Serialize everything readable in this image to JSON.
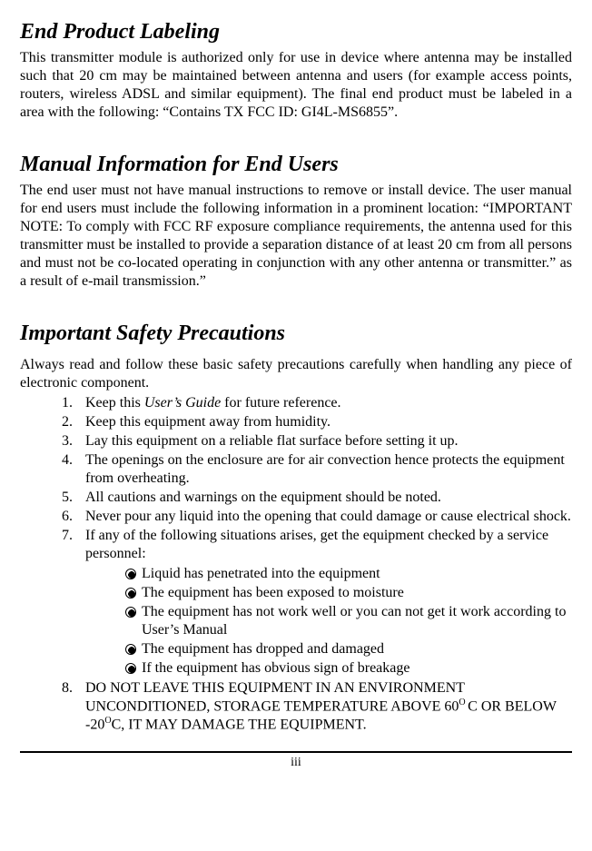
{
  "section1": {
    "heading": "End Product Labeling",
    "body": "This transmitter module is authorized only for use in device where antenna may be installed such that 20 cm may be maintained between antenna and users (for example access points, routers, wireless ADSL and similar equipment). The final end product must be labeled in a area with the following: “Contains TX FCC ID: GI4L-MS6855”."
  },
  "section2": {
    "heading": "Manual Information for End Users",
    "body": "The end user must not have manual instructions to remove or install device.  The user manual for end users must include the following information in a prominent location: “IMPORTANT NOTE: To comply with FCC RF exposure compliance requirements, the antenna used for this transmitter must be installed to provide a separation distance of at least 20 cm from all persons and must not be co-located operating in conjunction with any other antenna or transmitter.” as a result of e-mail transmission.”"
  },
  "section3": {
    "heading": "Important Safety Precautions",
    "intro": "Always read and follow these basic safety precautions carefully when handling any piece of electronic component.",
    "items": {
      "i1_pre": "Keep this ",
      "i1_ital": "User’s Guide",
      "i1_post": " for future reference.",
      "i2": "Keep this equipment away from humidity.",
      "i3": "Lay this equipment on a reliable flat surface before setting it up.",
      "i4": "The openings on the enclosure are for air convection hence protects the equipment from overheating.",
      "i5": "All cautions and warnings on the equipment should be noted.",
      "i6": "Never pour any liquid into the opening that could damage or cause electrical shock.",
      "i7": "If any of the following situations arises, get the equipment checked by a service personnel:",
      "sub": [
        "Liquid has penetrated into the equipment",
        "The equipment has been exposed to moisture",
        "The equipment has not work well or you can not get it work according to User’s Manual",
        "The equipment has dropped and damaged",
        "If the equipment has obvious sign of breakage"
      ],
      "i8_a": "DO NOT LEAVE THIS EQUIPMENT IN AN ENVIRONMENT UNCONDITIONED, STORAGE TEMPERATURE ABOVE 60",
      "i8_sup1": "O ",
      "i8_b": "C OR BELOW -20",
      "i8_sup2": "O",
      "i8_c": "C, IT MAY DAMAGE THE EQUIPMENT."
    }
  },
  "page_number": "iii"
}
